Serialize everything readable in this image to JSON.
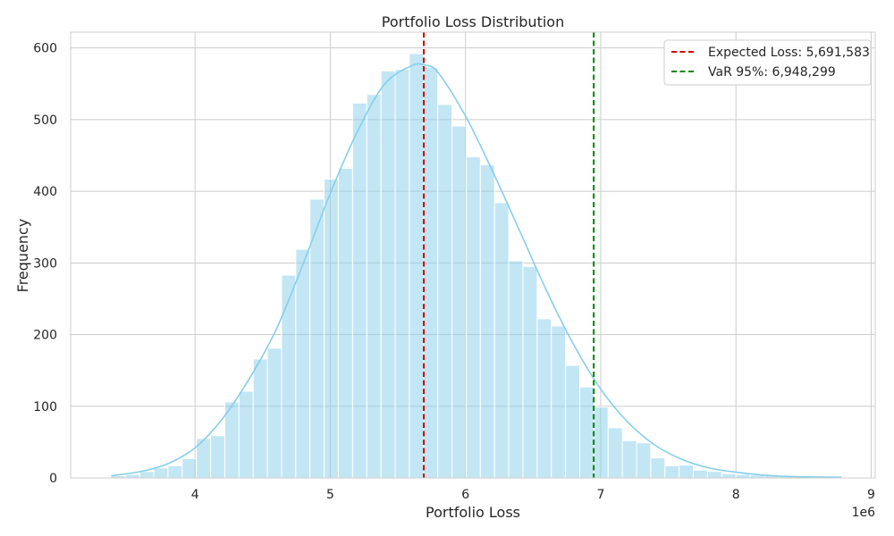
{
  "chart_data": {
    "type": "bar",
    "title": "Portfolio Loss Distribution",
    "xlabel": "Portfolio Loss",
    "ylabel": "Frequency",
    "x_offset_label": "1e6",
    "xlim": [
      3.08,
      9.03
    ],
    "ylim": [
      0,
      622
    ],
    "xticks": [
      4,
      5,
      6,
      7,
      8,
      9
    ],
    "yticks": [
      0,
      100,
      200,
      300,
      400,
      500,
      600
    ],
    "grid": true,
    "bar_color": "#87ceeb",
    "kde_color": "#87ceeb",
    "bin_start": 3.38,
    "bin_width": 0.105,
    "counts": [
      3,
      5,
      9,
      14,
      17,
      27,
      55,
      59,
      106,
      121,
      166,
      181,
      283,
      319,
      389,
      417,
      432,
      523,
      535,
      568,
      570,
      592,
      573,
      521,
      491,
      448,
      437,
      384,
      303,
      295,
      222,
      212,
      157,
      127,
      99,
      70,
      52,
      49,
      28,
      17,
      18,
      11,
      9,
      6,
      5,
      4,
      3,
      2,
      1,
      1,
      1
    ],
    "kde": {
      "x": [
        3.38,
        3.6,
        3.8,
        4.0,
        4.2,
        4.4,
        4.6,
        4.8,
        5.0,
        5.2,
        5.4,
        5.6,
        5.7,
        5.8,
        6.0,
        6.2,
        6.4,
        6.6,
        6.8,
        7.0,
        7.2,
        7.4,
        7.6,
        7.8,
        8.0,
        8.2,
        8.4,
        8.78
      ],
      "y": [
        3,
        9,
        20,
        42,
        82,
        138,
        207,
        299,
        397,
        483,
        549,
        575,
        576,
        565,
        505,
        428,
        345,
        261,
        186,
        124,
        78,
        46,
        26,
        14,
        8,
        4,
        2,
        1
      ]
    },
    "reference_lines": [
      {
        "label": "Expected Loss: 5,691,583",
        "value": 5.691583,
        "color": "#d40000",
        "style": "dashed"
      },
      {
        "label": "VaR 95%: 6,948,299",
        "value": 6.948299,
        "color": "#008800",
        "style": "dashed"
      }
    ],
    "legend_position": "top-right"
  }
}
